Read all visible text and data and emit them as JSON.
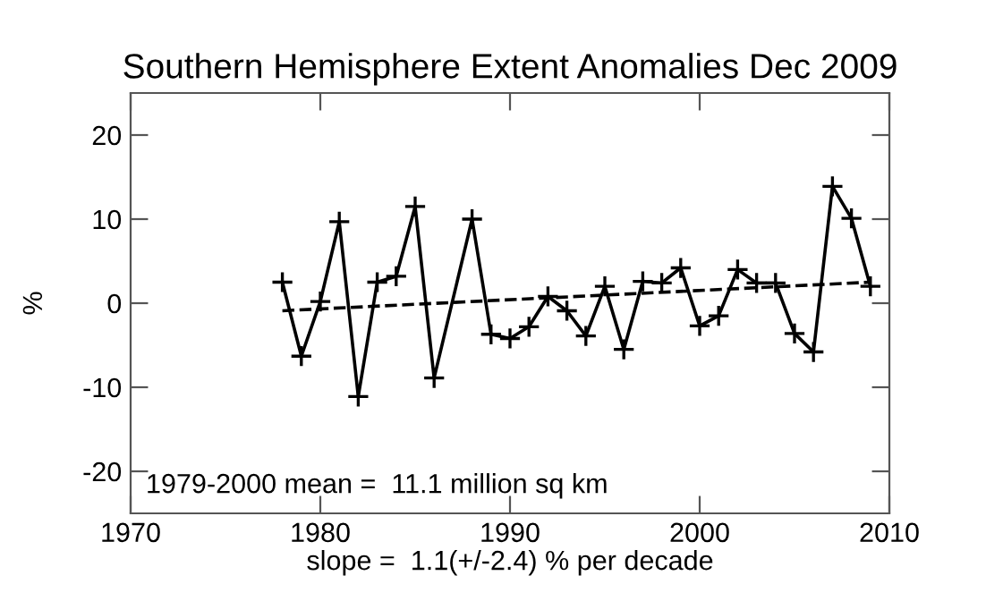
{
  "chart_data": {
    "type": "line",
    "title": "Southern Hemisphere Extent Anomalies Dec 2009",
    "xlabel": "slope =  1.1(+/-2.4) % per decade",
    "ylabel": "%",
    "annotations": [
      "1979-2000 mean =  11.1 million sq km"
    ],
    "series": [
      {
        "color": "#000000",
        "marker": "cross",
        "line_style": "solid",
        "x": [
          1978,
          1979,
          1980,
          1981,
          1982,
          1983,
          1984,
          1985,
          1986,
          1988,
          1989,
          1990,
          1991,
          1992,
          1993,
          1994,
          1995,
          1996,
          1997,
          1998,
          1999,
          2000,
          2001,
          2002,
          2003,
          2004,
          2005,
          2006,
          2007,
          2008,
          2009
        ],
        "values": [
          2.5,
          -6.3,
          0.2,
          9.7,
          -11.1,
          2.5,
          3.2,
          11.5,
          -8.9,
          10.0,
          -3.7,
          -4.2,
          -2.8,
          0.8,
          -0.9,
          -3.9,
          2.0,
          -5.5,
          2.6,
          2.4,
          4.2,
          -2.7,
          -1.5,
          4.0,
          2.4,
          2.4,
          -3.6,
          -5.8,
          13.9,
          10.1,
          2.0
        ]
      },
      {
        "color": "#000000",
        "marker": "none",
        "line_style": "dashed",
        "x": [
          1978,
          2009
        ],
        "values": [
          -0.9,
          2.5
        ]
      }
    ],
    "xlim": [
      1970,
      2010
    ],
    "xticks": [
      1970,
      1980,
      1990,
      2000,
      2010
    ],
    "ylim": [
      -25,
      25
    ],
    "yticks": [
      -20,
      -10,
      0,
      10,
      20
    ],
    "grid": false,
    "legend": false
  }
}
